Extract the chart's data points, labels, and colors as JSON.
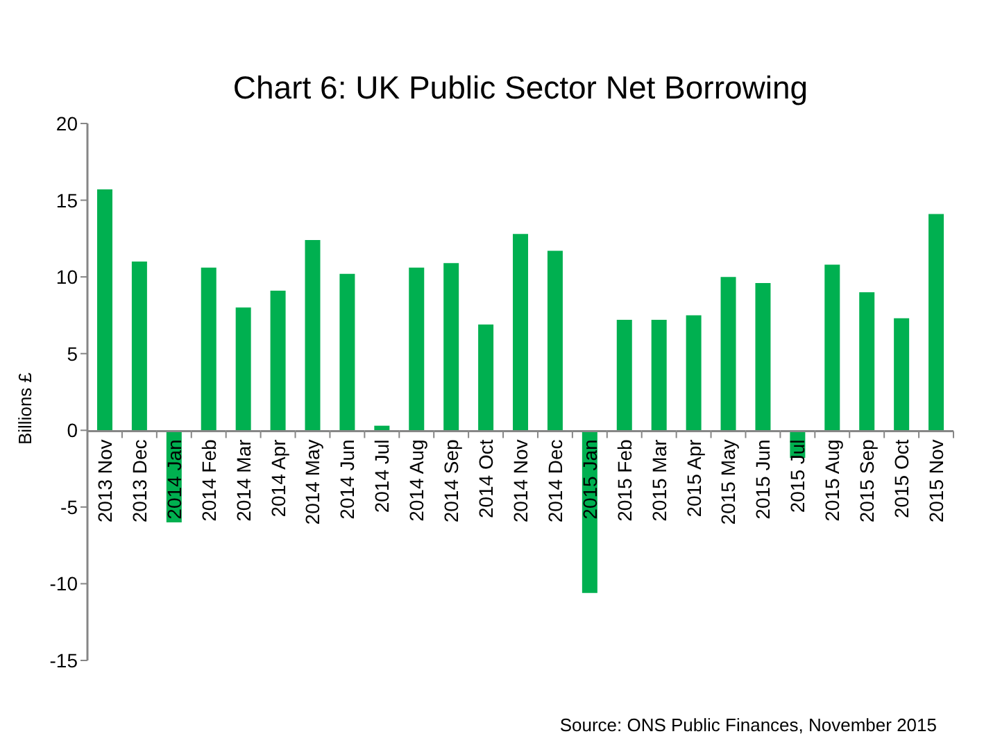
{
  "chart_data": {
    "type": "bar",
    "title": "Chart 6: UK Public Sector Net Borrowing",
    "ylabel": "Billions £",
    "categories": [
      "2013 Nov",
      "2013 Dec",
      "2014 Jan",
      "2014 Feb",
      "2014 Mar",
      "2014 Apr",
      "2014 May",
      "2014 Jun",
      "2014 Jul",
      "2014 Aug",
      "2014 Sep",
      "2014 Oct",
      "2014 Nov",
      "2014 Dec",
      "2015 Jan",
      "2015 Feb",
      "2015 Mar",
      "2015 Apr",
      "2015 May",
      "2015 Jun",
      "2015 Jul",
      "2015 Aug",
      "2015 Sep",
      "2015 Oct",
      "2015 Nov"
    ],
    "series": [
      {
        "color": "#00b050",
        "values": [
          15.7,
          11.0,
          -6.0,
          10.6,
          8.0,
          9.1,
          12.4,
          10.2,
          0.3,
          10.6,
          10.9,
          6.9,
          12.8,
          11.7,
          -10.6,
          7.2,
          7.2,
          7.5,
          10.0,
          9.6,
          -1.8,
          10.8,
          9.0,
          7.3,
          14.1
        ]
      }
    ],
    "ylim": [
      -15,
      20
    ],
    "yticks": [
      -15,
      -10,
      -5,
      0,
      5,
      10,
      15,
      20
    ],
    "grid": false,
    "legend": false,
    "annotations": [
      "Source: ONS Public Finances, November 2015"
    ]
  }
}
